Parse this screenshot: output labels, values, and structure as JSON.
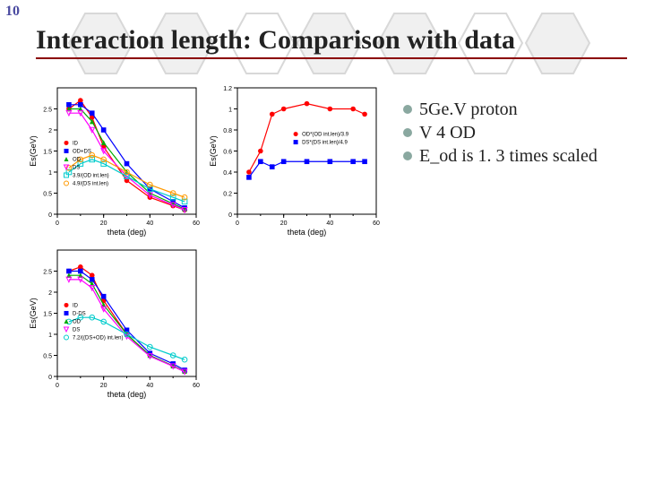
{
  "page_number": "10",
  "title": "Interaction length: Comparison with data",
  "bullets": [
    "5Ge.V proton",
    "V 4 OD",
    "E_od is 1. 3 times scaled"
  ],
  "bullet_marker_color": "#8aa8a0",
  "title_underline_color": "#8b0000",
  "hex_colors": {
    "fill": "#f0f0f0",
    "stroke": "#d8d8d8"
  },
  "chart_common": {
    "xlabel": "theta (deg)",
    "xlim": [
      0,
      60
    ],
    "xticks": [
      0,
      20,
      40,
      60
    ],
    "label_fontsize": 9,
    "tick_fontsize": 7,
    "axis_color": "#000000",
    "bg": "#ffffff",
    "grid": false
  },
  "chart_tl": {
    "ylabel": "Es(GeV)",
    "ylim": [
      0,
      3
    ],
    "yticks": [
      0,
      0.5,
      1,
      1.5,
      2,
      2.5
    ],
    "series": [
      {
        "name": "ID",
        "color": "#ff0000",
        "marker": "circle-filled",
        "x": [
          5,
          10,
          15,
          20,
          30,
          40,
          50,
          55
        ],
        "y": [
          2.5,
          2.7,
          2.3,
          1.6,
          0.8,
          0.4,
          0.2,
          0.1
        ]
      },
      {
        "name": "OD+DS",
        "color": "#0000ff",
        "marker": "square-filled",
        "x": [
          5,
          10,
          15,
          20,
          30,
          40,
          50,
          55
        ],
        "y": [
          2.6,
          2.6,
          2.4,
          2.0,
          1.2,
          0.6,
          0.3,
          0.15
        ]
      },
      {
        "name": "OD",
        "color": "#00aa00",
        "marker": "triangle-filled",
        "x": [
          5,
          10,
          15,
          20,
          30,
          40,
          50,
          55
        ],
        "y": [
          2.5,
          2.5,
          2.2,
          1.7,
          1.0,
          0.5,
          0.25,
          0.12
        ]
      },
      {
        "name": "DS",
        "color": "#ff00ff",
        "marker": "tri-down-open",
        "x": [
          5,
          10,
          15,
          20,
          30,
          40,
          50,
          55
        ],
        "y": [
          2.4,
          2.4,
          2.0,
          1.5,
          0.9,
          0.45,
          0.22,
          0.1
        ]
      },
      {
        "name": "3.9/(OD int.len)",
        "color": "#00cccc",
        "marker": "square-open",
        "x": [
          5,
          10,
          15,
          20,
          30,
          40,
          50,
          55
        ],
        "y": [
          1.0,
          1.2,
          1.3,
          1.2,
          0.9,
          0.6,
          0.4,
          0.3
        ]
      },
      {
        "name": "4.9/(DS int.len)",
        "color": "#ff9900",
        "marker": "circle-open",
        "x": [
          5,
          10,
          15,
          20,
          30,
          40,
          50,
          55
        ],
        "y": [
          1.1,
          1.3,
          1.4,
          1.3,
          1.0,
          0.7,
          0.5,
          0.4
        ]
      }
    ],
    "legend_pos": "left-mid"
  },
  "chart_tr": {
    "ylabel": "Es(GeV)",
    "ylim": [
      0,
      1.2
    ],
    "yticks": [
      0,
      0.2,
      0.4,
      0.6,
      0.8,
      1,
      1.2
    ],
    "series": [
      {
        "name": "OD*(OD int.len)/3.9",
        "color": "#ff0000",
        "marker": "circle-filled",
        "x": [
          5,
          10,
          15,
          20,
          30,
          40,
          50,
          55
        ],
        "y": [
          0.4,
          0.6,
          0.95,
          1.0,
          1.05,
          1.0,
          1.0,
          0.95
        ]
      },
      {
        "name": "DS*(DS int.len)/4.9",
        "color": "#0000ff",
        "marker": "square-filled",
        "x": [
          5,
          10,
          15,
          20,
          30,
          40,
          50,
          55
        ],
        "y": [
          0.35,
          0.5,
          0.45,
          0.5,
          0.5,
          0.5,
          0.5,
          0.5
        ]
      }
    ],
    "legend_pos": "right-mid"
  },
  "chart_bl": {
    "ylabel": "Es(GeV)",
    "ylim": [
      0,
      3
    ],
    "yticks": [
      0,
      0.5,
      1,
      1.5,
      2,
      2.5
    ],
    "series": [
      {
        "name": "ID",
        "color": "#ff0000",
        "marker": "circle-filled",
        "x": [
          5,
          10,
          15,
          20,
          30,
          40,
          50,
          55
        ],
        "y": [
          2.5,
          2.6,
          2.4,
          1.8,
          1.0,
          0.5,
          0.25,
          0.12
        ]
      },
      {
        "name": "D-DS",
        "color": "#0000ff",
        "marker": "square-filled",
        "x": [
          5,
          10,
          15,
          20,
          30,
          40,
          50,
          55
        ],
        "y": [
          2.5,
          2.5,
          2.3,
          1.9,
          1.1,
          0.55,
          0.3,
          0.15
        ]
      },
      {
        "name": "OD",
        "color": "#00aa00",
        "marker": "triangle-filled",
        "x": [
          5,
          10,
          15,
          20,
          30,
          40,
          50,
          55
        ],
        "y": [
          2.4,
          2.4,
          2.2,
          1.7,
          1.0,
          0.5,
          0.25,
          0.12
        ]
      },
      {
        "name": "DS",
        "color": "#ff00ff",
        "marker": "tri-down-open",
        "x": [
          5,
          10,
          15,
          20,
          30,
          40,
          50,
          55
        ],
        "y": [
          2.3,
          2.3,
          2.1,
          1.6,
          0.95,
          0.48,
          0.24,
          0.11
        ]
      },
      {
        "name": "7.2/((DS+OD) int.len)",
        "color": "#00cccc",
        "marker": "circle-open",
        "x": [
          5,
          10,
          15,
          20,
          30,
          40,
          50,
          55
        ],
        "y": [
          1.3,
          1.4,
          1.4,
          1.3,
          1.0,
          0.7,
          0.5,
          0.4
        ]
      }
    ],
    "legend_pos": "left-mid"
  }
}
